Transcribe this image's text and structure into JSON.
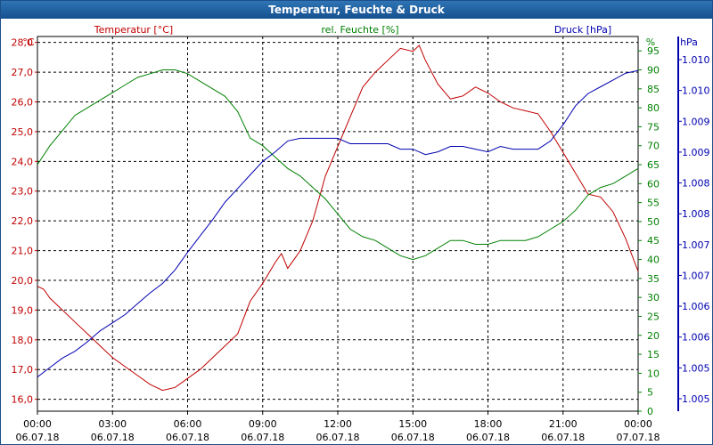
{
  "window": {
    "title": "Temperatur, Feuchte & Druck"
  },
  "colors": {
    "temperature": "#c00000",
    "humidity": "#008000",
    "pressure": "#0000b0",
    "title_bar": "#15508f"
  },
  "chart_data": {
    "type": "line",
    "title": "Temperatur, Feuchte & Druck",
    "xlim": [
      0,
      24
    ],
    "x_ticks": [
      {
        "time": "00:00",
        "date": "06.07.18",
        "x": 0
      },
      {
        "time": "03:00",
        "date": "06.07.18",
        "x": 3
      },
      {
        "time": "06:00",
        "date": "06.07.18",
        "x": 6
      },
      {
        "time": "09:00",
        "date": "06.07.18",
        "x": 9
      },
      {
        "time": "12:00",
        "date": "06.07.18",
        "x": 12
      },
      {
        "time": "15:00",
        "date": "06.07.18",
        "x": 15
      },
      {
        "time": "18:00",
        "date": "06.07.18",
        "x": 18
      },
      {
        "time": "21:00",
        "date": "06.07.18",
        "x": 21
      },
      {
        "time": "00:00",
        "date": "07.07.18",
        "x": 24
      }
    ],
    "grid": true,
    "axes": {
      "temperature": {
        "label": "Temperatur [°C]",
        "unit": "°C",
        "side": "left",
        "ylim": [
          15.6,
          28.2
        ],
        "ticks": [
          16.0,
          17.0,
          18.0,
          19.0,
          20.0,
          21.0,
          22.0,
          23.0,
          24.0,
          25.0,
          26.0,
          27.0,
          28.0
        ],
        "tick_labels": [
          "16,0",
          "17,0",
          "18,0",
          "19,0",
          "20,0",
          "21,0",
          "22,0",
          "23,0",
          "24,0",
          "25,0",
          "26,0",
          "27,0",
          "28,0"
        ]
      },
      "humidity": {
        "label": "rel. Feuchte [%]",
        "unit": "%",
        "side": "right",
        "ylim": [
          0,
          98.8
        ],
        "ticks": [
          0,
          5,
          10,
          15,
          20,
          25,
          30,
          35,
          40,
          45,
          50,
          55,
          60,
          65,
          70,
          75,
          80,
          85,
          90,
          95
        ],
        "tick_labels": [
          "0",
          "5",
          "10",
          "15",
          "20",
          "25",
          "30",
          "35",
          "40",
          "45",
          "50",
          "55",
          "60",
          "65",
          "70",
          "75",
          "80",
          "85",
          "90",
          "95"
        ]
      },
      "pressure": {
        "label": "Druck [hPa]",
        "unit": "hPa",
        "side": "right-outer",
        "tick_labels": [
          "1.005",
          "1.005",
          "1.006",
          "1.006",
          "1.007",
          "1.007",
          "1.008",
          "1.008",
          "1.009",
          "1.009",
          "1.010",
          "1.010"
        ]
      }
    },
    "series": [
      {
        "name": "Temperatur [°C]",
        "axis": "temperature",
        "points": [
          [
            0,
            19.8
          ],
          [
            0.25,
            19.7
          ],
          [
            0.5,
            19.4
          ],
          [
            1,
            19.0
          ],
          [
            1.5,
            18.6
          ],
          [
            2,
            18.2
          ],
          [
            2.5,
            17.8
          ],
          [
            3,
            17.4
          ],
          [
            3.5,
            17.1
          ],
          [
            4,
            16.8
          ],
          [
            4.5,
            16.5
          ],
          [
            5,
            16.3
          ],
          [
            5.5,
            16.4
          ],
          [
            6,
            16.7
          ],
          [
            6.5,
            17.0
          ],
          [
            7,
            17.4
          ],
          [
            7.5,
            17.8
          ],
          [
            8,
            18.2
          ],
          [
            8.5,
            19.3
          ],
          [
            9,
            19.9
          ],
          [
            9.5,
            20.6
          ],
          [
            9.75,
            20.9
          ],
          [
            10,
            20.4
          ],
          [
            10.25,
            20.7
          ],
          [
            10.5,
            21.0
          ],
          [
            11,
            22.0
          ],
          [
            11.5,
            23.5
          ],
          [
            12,
            24.5
          ],
          [
            12.5,
            25.5
          ],
          [
            13,
            26.5
          ],
          [
            13.5,
            27.0
          ],
          [
            14,
            27.4
          ],
          [
            14.5,
            27.8
          ],
          [
            15,
            27.7
          ],
          [
            15.25,
            27.9
          ],
          [
            15.5,
            27.4
          ],
          [
            16,
            26.6
          ],
          [
            16.5,
            26.1
          ],
          [
            17,
            26.2
          ],
          [
            17.5,
            26.5
          ],
          [
            18,
            26.3
          ],
          [
            18.5,
            26.0
          ],
          [
            19,
            25.8
          ],
          [
            19.5,
            25.7
          ],
          [
            20,
            25.6
          ],
          [
            20.5,
            25.0
          ],
          [
            21,
            24.3
          ],
          [
            21.5,
            23.6
          ],
          [
            22,
            22.9
          ],
          [
            22.5,
            22.8
          ],
          [
            23,
            22.3
          ],
          [
            23.5,
            21.4
          ],
          [
            24,
            20.3
          ]
        ]
      },
      {
        "name": "rel. Feuchte [%]",
        "axis": "humidity",
        "points": [
          [
            0,
            65
          ],
          [
            0.5,
            70
          ],
          [
            1,
            74
          ],
          [
            1.5,
            78
          ],
          [
            2,
            80
          ],
          [
            2.5,
            82
          ],
          [
            3,
            84
          ],
          [
            3.5,
            86
          ],
          [
            4,
            88
          ],
          [
            4.5,
            89
          ],
          [
            5,
            90
          ],
          [
            5.5,
            90
          ],
          [
            6,
            89
          ],
          [
            6.5,
            87
          ],
          [
            7,
            85
          ],
          [
            7.5,
            83
          ],
          [
            8,
            79
          ],
          [
            8.5,
            72
          ],
          [
            9,
            70
          ],
          [
            9.5,
            67
          ],
          [
            10,
            64
          ],
          [
            10.5,
            62
          ],
          [
            11,
            59
          ],
          [
            11.5,
            56
          ],
          [
            12,
            52
          ],
          [
            12.5,
            48
          ],
          [
            13,
            46
          ],
          [
            13.5,
            45
          ],
          [
            14,
            43
          ],
          [
            14.5,
            41
          ],
          [
            15,
            40
          ],
          [
            15.5,
            41
          ],
          [
            16,
            43
          ],
          [
            16.5,
            45
          ],
          [
            17,
            45
          ],
          [
            17.5,
            44
          ],
          [
            18,
            44
          ],
          [
            18.5,
            45
          ],
          [
            19,
            45
          ],
          [
            19.5,
            45
          ],
          [
            20,
            46
          ],
          [
            20.5,
            48
          ],
          [
            21,
            50
          ],
          [
            21.5,
            53
          ],
          [
            22,
            57
          ],
          [
            22.5,
            59
          ],
          [
            23,
            60
          ],
          [
            23.5,
            62
          ],
          [
            24,
            64
          ]
        ]
      },
      {
        "name": "Druck [hPa]",
        "axis": "pressure",
        "points": [
          [
            0,
            1.6
          ],
          [
            0.5,
            2.3
          ],
          [
            1,
            3.0
          ],
          [
            1.5,
            3.5
          ],
          [
            2,
            4.2
          ],
          [
            2.5,
            5.0
          ],
          [
            3,
            5.6
          ],
          [
            3.5,
            6.2
          ],
          [
            4,
            7.0
          ],
          [
            4.5,
            7.8
          ],
          [
            5,
            8.5
          ],
          [
            5.5,
            9.5
          ],
          [
            6,
            10.8
          ],
          [
            6.5,
            12.0
          ],
          [
            7,
            13.2
          ],
          [
            7.5,
            14.5
          ],
          [
            8,
            15.5
          ],
          [
            8.5,
            16.5
          ],
          [
            9,
            17.5
          ],
          [
            9.5,
            18.2
          ],
          [
            10,
            19.0
          ],
          [
            10.5,
            19.2
          ],
          [
            11,
            19.2
          ],
          [
            11.5,
            19.2
          ],
          [
            12,
            19.2
          ],
          [
            12.5,
            18.8
          ],
          [
            13,
            18.8
          ],
          [
            13.5,
            18.8
          ],
          [
            14,
            18.8
          ],
          [
            14.5,
            18.4
          ],
          [
            15,
            18.4
          ],
          [
            15.5,
            18.0
          ],
          [
            16,
            18.2
          ],
          [
            16.5,
            18.6
          ],
          [
            17,
            18.6
          ],
          [
            17.5,
            18.4
          ],
          [
            18,
            18.2
          ],
          [
            18.5,
            18.6
          ],
          [
            19,
            18.4
          ],
          [
            19.5,
            18.4
          ],
          [
            20,
            18.4
          ],
          [
            20.5,
            19.0
          ],
          [
            21,
            20.2
          ],
          [
            21.5,
            21.6
          ],
          [
            22,
            22.5
          ],
          [
            22.5,
            23.0
          ],
          [
            23,
            23.5
          ],
          [
            23.5,
            24.0
          ],
          [
            24,
            24.2
          ]
        ]
      }
    ]
  }
}
